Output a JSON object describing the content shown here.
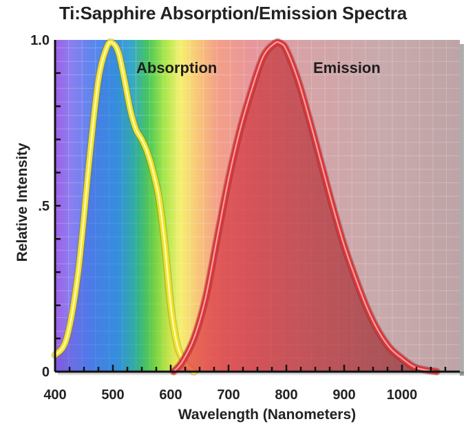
{
  "chart_data": {
    "type": "area",
    "title": "Ti:Sapphire Absorption/Emission Spectra",
    "xlabel": "Wavelength (Nanometers)",
    "ylabel": "Relative Intensity",
    "xlim": [
      400,
      1100
    ],
    "ylim": [
      0,
      1.0
    ],
    "x_ticks": [
      400,
      500,
      600,
      700,
      800,
      900,
      1000
    ],
    "x_tick_labels": [
      "400",
      "500",
      "600",
      "700",
      "800",
      "900",
      "1000"
    ],
    "y_ticks": [
      0,
      0.5,
      1.0
    ],
    "y_tick_labels": [
      "0",
      ".5",
      "1.0"
    ],
    "grid": true,
    "series": [
      {
        "name": "Absorption",
        "color": "#f2e22a",
        "x": [
          400,
          420,
          440,
          460,
          475,
          490,
          500,
          510,
          520,
          530,
          540,
          550,
          560,
          570,
          580,
          590,
          600,
          610,
          620,
          630,
          640
        ],
        "y": [
          0.05,
          0.1,
          0.3,
          0.65,
          0.88,
          0.98,
          0.99,
          0.96,
          0.88,
          0.79,
          0.73,
          0.7,
          0.66,
          0.6,
          0.52,
          0.38,
          0.2,
          0.09,
          0.04,
          0.015,
          0
        ]
      },
      {
        "name": "Emission",
        "color": "#d9363a",
        "x": [
          605,
          620,
          640,
          660,
          680,
          700,
          720,
          740,
          760,
          780,
          790,
          800,
          820,
          840,
          860,
          880,
          900,
          920,
          940,
          960,
          980,
          1000,
          1020,
          1040,
          1060
        ],
        "y": [
          0,
          0.03,
          0.1,
          0.22,
          0.4,
          0.58,
          0.73,
          0.85,
          0.95,
          0.99,
          0.99,
          0.97,
          0.88,
          0.76,
          0.63,
          0.5,
          0.38,
          0.28,
          0.19,
          0.12,
          0.07,
          0.04,
          0.015,
          0.005,
          0
        ]
      }
    ]
  }
}
